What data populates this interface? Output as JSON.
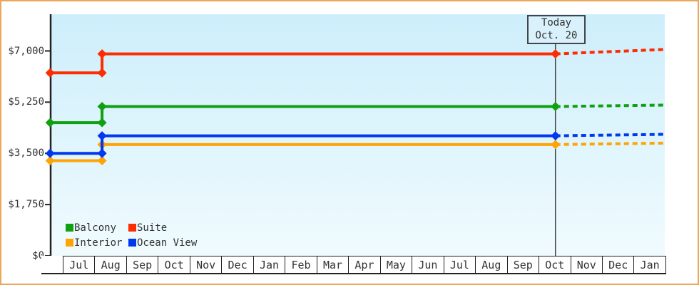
{
  "page": {
    "background": "#ffffff",
    "frame_border_color": "#eaa75c",
    "axis_color": "#222222",
    "text_color": "#333333",
    "today_line_color": "#444444"
  },
  "chart_data": {
    "type": "line",
    "title": "",
    "subtitle": "",
    "grid": "off",
    "legend_position": "bottom-left-inside",
    "plot_background": {
      "top": "#cdeefb",
      "bottom": "#f0fbfe"
    },
    "y_axis": {
      "ticks": [
        {
          "value": 7000,
          "label": "$7,000"
        },
        {
          "value": 5250,
          "label": "$5,250"
        },
        {
          "value": 3500,
          "label": "$3,500"
        },
        {
          "value": 1750,
          "label": "$1,750"
        },
        {
          "value": 0,
          "label": "$0"
        }
      ],
      "min": 0,
      "max_displayed": 8250
    },
    "months": [
      "Jul",
      "Aug",
      "Sep",
      "Oct",
      "Nov",
      "Dec",
      "Jan",
      "Feb",
      "Mar",
      "Apr",
      "May",
      "Jun",
      "Jul",
      "Aug",
      "Sep",
      "Oct",
      "Nov",
      "Dec",
      "Jan"
    ],
    "today": {
      "line1": "Today",
      "line2": "Oct. 20",
      "t_month": 15.55
    },
    "t_start": -0.4,
    "t_jump": 1.24,
    "t_end": 18.95,
    "marker": "diamond",
    "line_style": {
      "before_today": "solid",
      "after_today": "dashed"
    },
    "series": [
      {
        "name": "Balcony",
        "color": "#10a010",
        "start_value": 4550,
        "jump_value": 5100,
        "projected_end_value": 5150,
        "z": 0
      },
      {
        "name": "Suite",
        "color": "#fc2d00",
        "start_value": 6250,
        "jump_value": 6900,
        "projected_end_value": 7050,
        "z": 3
      },
      {
        "name": "Interior",
        "color": "#ffa405",
        "start_value": 3250,
        "jump_value": 3800,
        "projected_end_value": 3850,
        "z": 1
      },
      {
        "name": "Ocean View",
        "color": "#0038f0",
        "start_value": 3500,
        "jump_value": 4100,
        "projected_end_value": 4150,
        "z": 2
      }
    ]
  }
}
